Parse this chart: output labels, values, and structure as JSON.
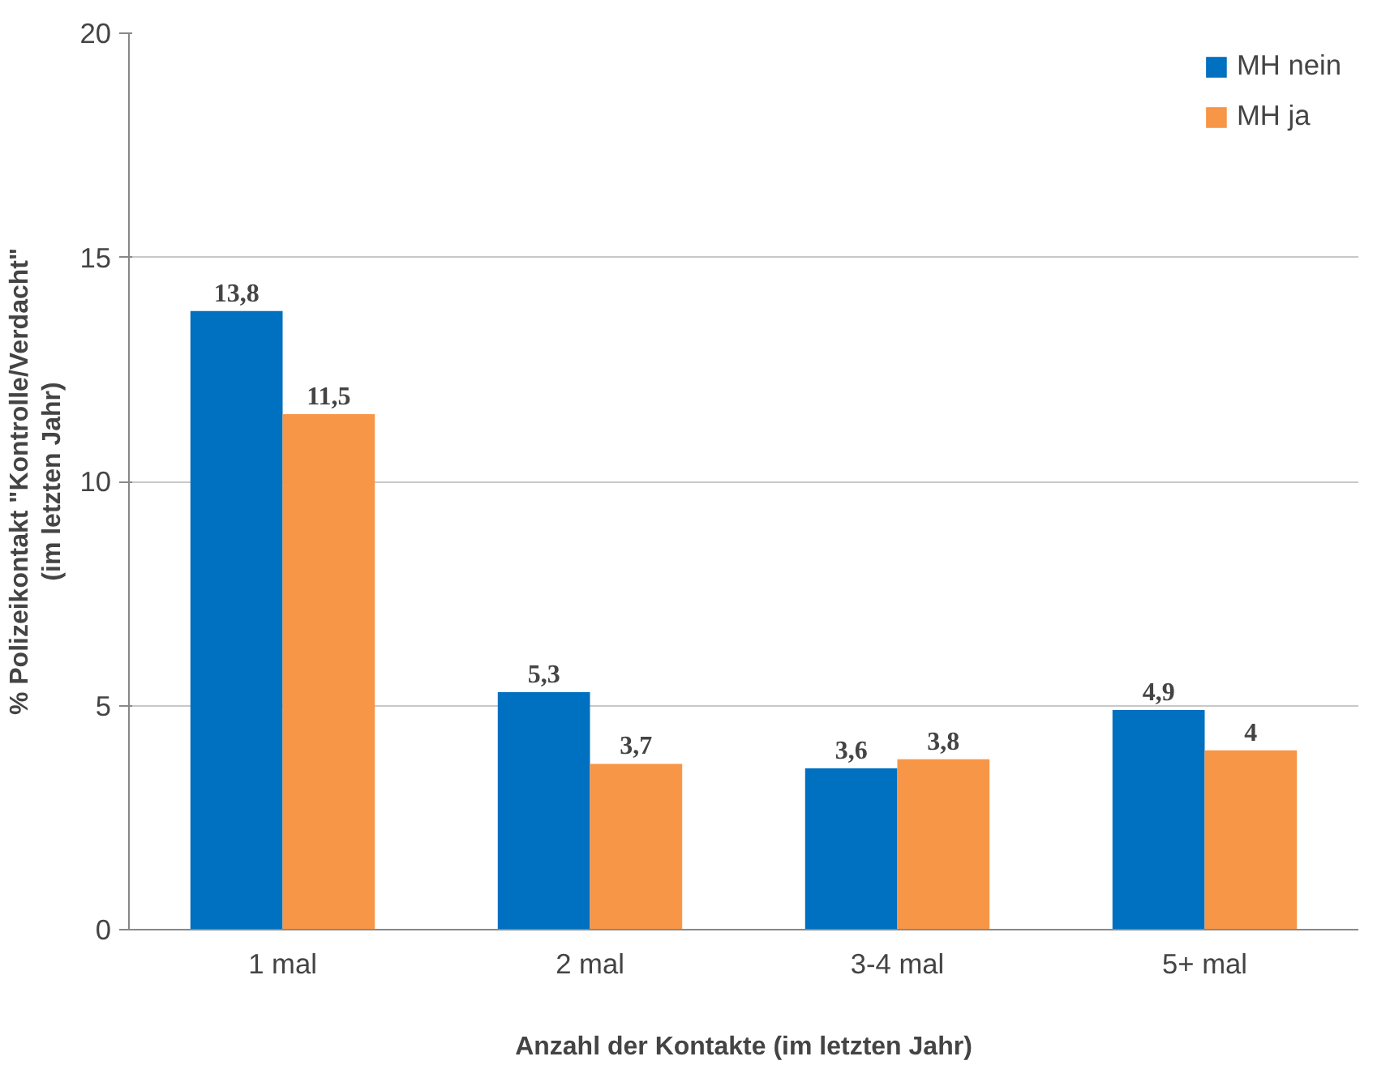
{
  "chart_data": {
    "type": "bar",
    "xlabel": "Anzahl der Kontakte (im letzten Jahr)",
    "ylabel": "% Polizeikontakt \"Kontrolle/Verdacht\"\n(im letzten Jahr)",
    "categories": [
      "1 mal",
      "2 mal",
      "3-4 mal",
      "5+ mal"
    ],
    "series": [
      {
        "name": "MH nein",
        "color": "#0070c0",
        "values": [
          13.8,
          5.3,
          3.6,
          4.9
        ],
        "value_labels": [
          "13,8",
          "5,3",
          "3,6",
          "4,9"
        ]
      },
      {
        "name": "MH ja",
        "color": "#f79646",
        "values": [
          11.5,
          3.7,
          3.8,
          4
        ],
        "value_labels": [
          "11,5",
          "3,7",
          "3,8",
          "4"
        ]
      }
    ],
    "ylim": [
      0,
      20
    ],
    "yticks": [
      0,
      5,
      10,
      15,
      20
    ],
    "grid": "y",
    "legend": "top right"
  }
}
